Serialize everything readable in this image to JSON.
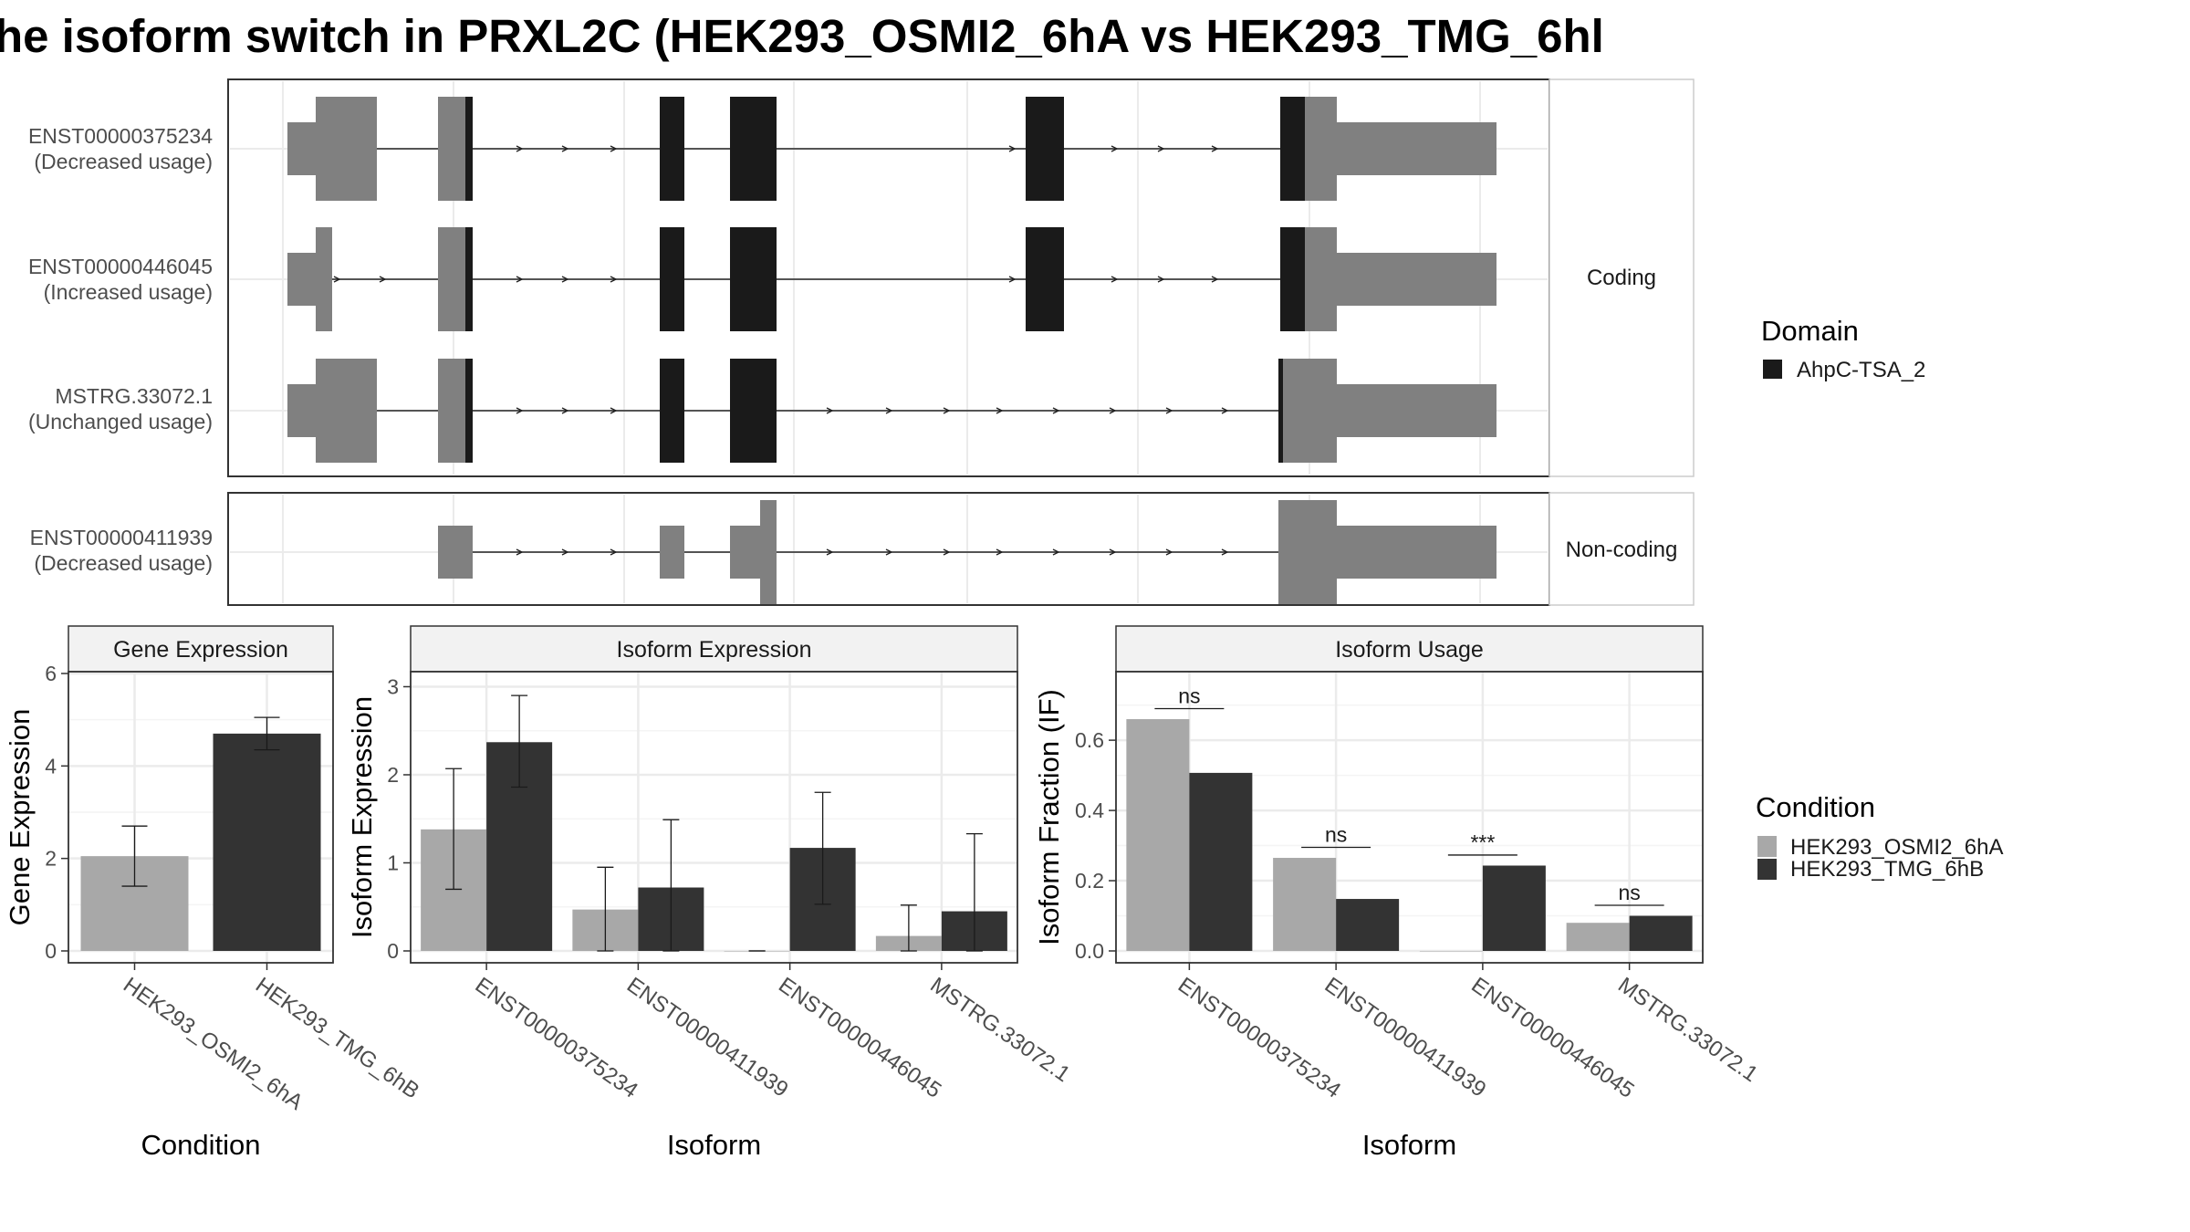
{
  "title": "he isoform switch in PRXL2C (HEK293_OSMI2_6hA vs HEK293_TMG_6hl",
  "colors": {
    "domain": "#1a1a1a",
    "exon": "#808080",
    "condition_a": "#a8a8a8",
    "condition_b": "#333333",
    "grid": "#ebebeb",
    "strip_fill": "#f2f2f2",
    "panel_border": "#333333"
  },
  "transcript_panel": {
    "facets": [
      "Coding",
      "Non-coding"
    ],
    "transcripts": [
      {
        "id": "ENST00000375234",
        "note": "(Decreased usage)",
        "facet": "Coding"
      },
      {
        "id": "ENST00000446045",
        "note": "(Increased usage)",
        "facet": "Coding"
      },
      {
        "id": "MSTRG.33072.1",
        "note": "(Unchanged usage)",
        "facet": "Coding"
      },
      {
        "id": "ENST00000411939",
        "note": "(Decreased usage)",
        "facet": "Non-coding"
      }
    ]
  },
  "legend_domain": {
    "title": "Domain",
    "items": [
      {
        "label": "AhpC-TSA_2",
        "color": "#1a1a1a"
      }
    ]
  },
  "legend_condition": {
    "title": "Condition",
    "items": [
      {
        "label": "HEK293_OSMI2_6hA",
        "color": "#a8a8a8"
      },
      {
        "label": "HEK293_TMG_6hB",
        "color": "#333333"
      }
    ]
  },
  "chart_data": [
    {
      "type": "bar",
      "title": "Gene Expression",
      "xlabel": "Condition",
      "ylabel": "Gene Expression",
      "categories": [
        "HEK293_OSMI2_6hA",
        "HEK293_TMG_6hB"
      ],
      "values": [
        2.05,
        4.7
      ],
      "errors": [
        [
          1.4,
          2.7
        ],
        [
          4.35,
          5.05
        ]
      ],
      "ylim": [
        0,
        6
      ],
      "yticks": [
        0,
        2,
        4,
        6
      ],
      "grid": true
    },
    {
      "type": "bar",
      "title": "Isoform Expression",
      "xlabel": "Isoform",
      "ylabel": "Isoform Expression",
      "categories": [
        "ENST00000375234",
        "ENST00000411939",
        "ENST00000446045",
        "MSTRG.33072.1"
      ],
      "series": [
        {
          "name": "HEK293_OSMI2_6hA",
          "values": [
            1.38,
            0.47,
            0.0,
            0.17
          ],
          "errors": [
            [
              0.7,
              2.07
            ],
            [
              0.0,
              0.95
            ],
            [
              0.0,
              0.0
            ],
            [
              0.0,
              0.52
            ]
          ]
        },
        {
          "name": "HEK293_TMG_6hB",
          "values": [
            2.37,
            0.72,
            1.17,
            0.45
          ],
          "errors": [
            [
              1.86,
              2.9
            ],
            [
              0.0,
              1.49
            ],
            [
              0.53,
              1.8
            ],
            [
              0.0,
              1.33
            ]
          ]
        }
      ],
      "ylim": [
        0,
        3.15
      ],
      "yticks": [
        0,
        1,
        2,
        3
      ],
      "grid": true
    },
    {
      "type": "bar",
      "title": "Isoform Usage",
      "xlabel": "Isoform",
      "ylabel": "Isoform Fraction (IF)",
      "categories": [
        "ENST00000375234",
        "ENST00000411939",
        "ENST00000446045",
        "MSTRG.33072.1"
      ],
      "series": [
        {
          "name": "HEK293_OSMI2_6hA",
          "values": [
            0.66,
            0.265,
            0.0,
            0.08
          ]
        },
        {
          "name": "HEK293_TMG_6hB",
          "values": [
            0.507,
            0.148,
            0.243,
            0.1
          ]
        }
      ],
      "annotations": [
        {
          "category": "ENST00000375234",
          "label": "ns",
          "y": 0.69
        },
        {
          "category": "ENST00000411939",
          "label": "ns",
          "y": 0.295
        },
        {
          "category": "ENST00000446045",
          "label": "***",
          "y": 0.273
        },
        {
          "category": "MSTRG.33072.1",
          "label": "ns",
          "y": 0.13
        }
      ],
      "ylim": [
        0,
        0.79
      ],
      "yticks": [
        0.0,
        0.2,
        0.4,
        0.6
      ],
      "ytick_labels": [
        "0.0",
        "0.2",
        "0.4",
        "0.6"
      ],
      "grid": true
    }
  ]
}
